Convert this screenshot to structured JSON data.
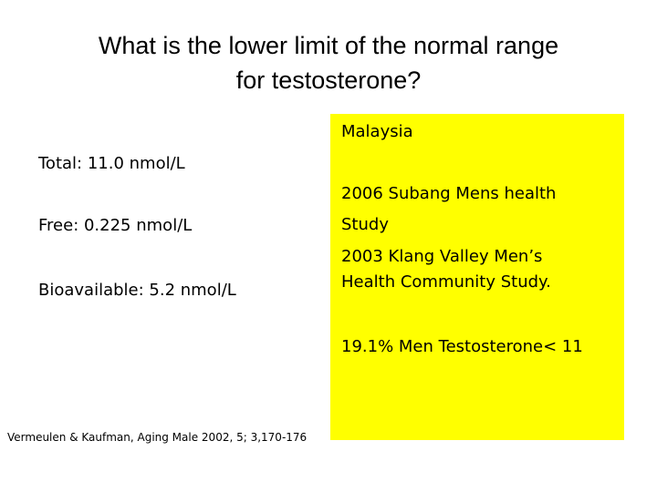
{
  "header": {
    "title_lines": [
      "What is the lower limit of the normal range",
      "for testosterone?"
    ]
  },
  "left": {
    "items": [
      "Total: 11.0 nmol/L",
      "Free: 0.225 nmol/L",
      "Bioavailable: 5.2 nmol/L"
    ]
  },
  "box": {
    "heading": "Malaysia",
    "study_lines": [
      "2006 Subang Mens health",
      "Study",
      "2003 Klang Valley Men’s",
      "Health Community Study."
    ],
    "finding": "19.1% Men Testosterone< 11"
  },
  "footnote": "Vermeulen & Kaufman, Aging Male 2002, 5; 3,170-176"
}
